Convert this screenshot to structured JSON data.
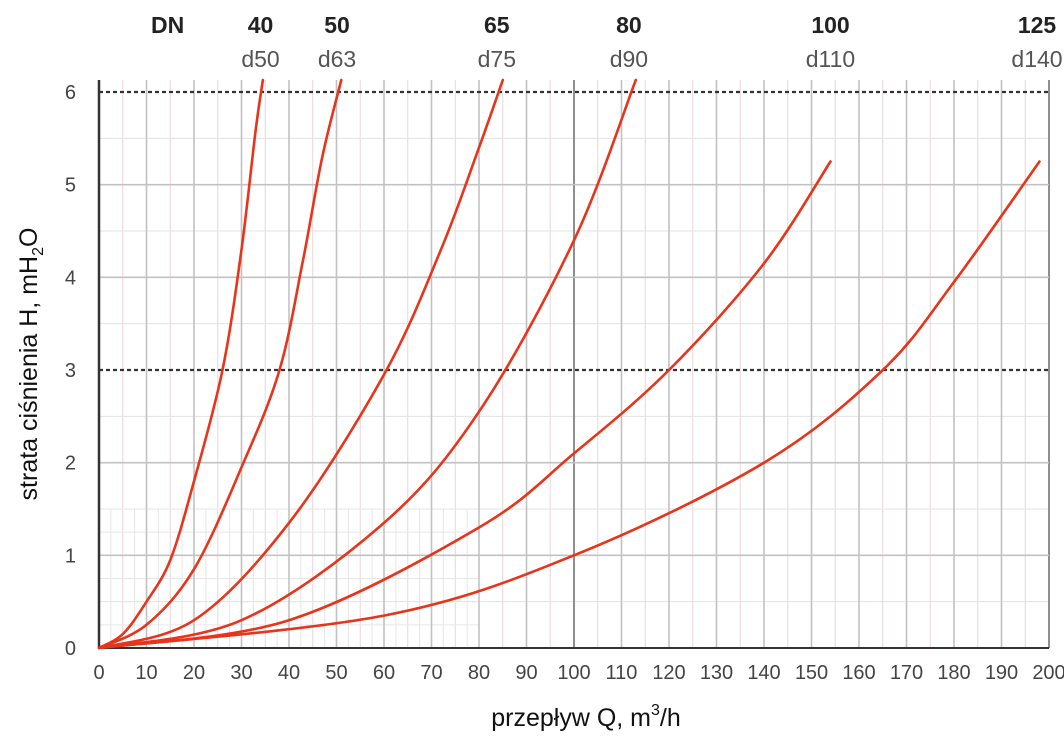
{
  "chart_data": {
    "type": "line",
    "xlabel": {
      "main": "przepływ Q, m",
      "sup": "3",
      "tail": "/h"
    },
    "ylabel": {
      "main": "strata ciśnienia H, mH",
      "sub": "2",
      "tail": "O"
    },
    "xlim": [
      0,
      200
    ],
    "ylim": [
      0,
      6
    ],
    "x_ticks": [
      0,
      10,
      20,
      30,
      40,
      50,
      60,
      70,
      80,
      90,
      100,
      110,
      120,
      130,
      140,
      150,
      160,
      170,
      180,
      190,
      200
    ],
    "y_ticks": [
      0,
      1,
      2,
      3,
      4,
      5,
      6
    ],
    "reference_lines_y": [
      3,
      6
    ],
    "grid": true,
    "line_color": "#e8341a",
    "header_label": "DN",
    "series": [
      {
        "dn": "40",
        "d": "d50",
        "points": [
          [
            0,
            0
          ],
          [
            5,
            0.15
          ],
          [
            10,
            0.5
          ],
          [
            15,
            0.95
          ],
          [
            20,
            1.8
          ],
          [
            26,
            3.0
          ],
          [
            30,
            4.3
          ],
          [
            33,
            5.6
          ],
          [
            34.5,
            6.2
          ]
        ]
      },
      {
        "dn": "50",
        "d": "d63",
        "points": [
          [
            0,
            0
          ],
          [
            10,
            0.25
          ],
          [
            20,
            0.85
          ],
          [
            30,
            1.95
          ],
          [
            38,
            3.0
          ],
          [
            43,
            4.2
          ],
          [
            47,
            5.3
          ],
          [
            51,
            6.2
          ]
        ]
      },
      {
        "dn": "65",
        "d": "d75",
        "points": [
          [
            0,
            0
          ],
          [
            20,
            0.3
          ],
          [
            40,
            1.35
          ],
          [
            60,
            2.95
          ],
          [
            72,
            4.3
          ],
          [
            80,
            5.4
          ],
          [
            85,
            6.2
          ]
        ]
      },
      {
        "dn": "80",
        "d": "d90",
        "points": [
          [
            0,
            0
          ],
          [
            30,
            0.3
          ],
          [
            60,
            1.35
          ],
          [
            80,
            2.55
          ],
          [
            100,
            4.4
          ],
          [
            113,
            6.2
          ]
        ]
      },
      {
        "dn": "100",
        "d": "d110",
        "points": [
          [
            0,
            0
          ],
          [
            40,
            0.3
          ],
          [
            80,
            1.3
          ],
          [
            100,
            2.1
          ],
          [
            120,
            3.0
          ],
          [
            140,
            4.15
          ],
          [
            154,
            5.25
          ]
        ]
      },
      {
        "dn": "125",
        "d": "d140",
        "points": [
          [
            0,
            0
          ],
          [
            60,
            0.35
          ],
          [
            100,
            1.0
          ],
          [
            140,
            2.0
          ],
          [
            165,
            3.0
          ],
          [
            180,
            3.95
          ],
          [
            198,
            5.25
          ]
        ]
      }
    ]
  }
}
